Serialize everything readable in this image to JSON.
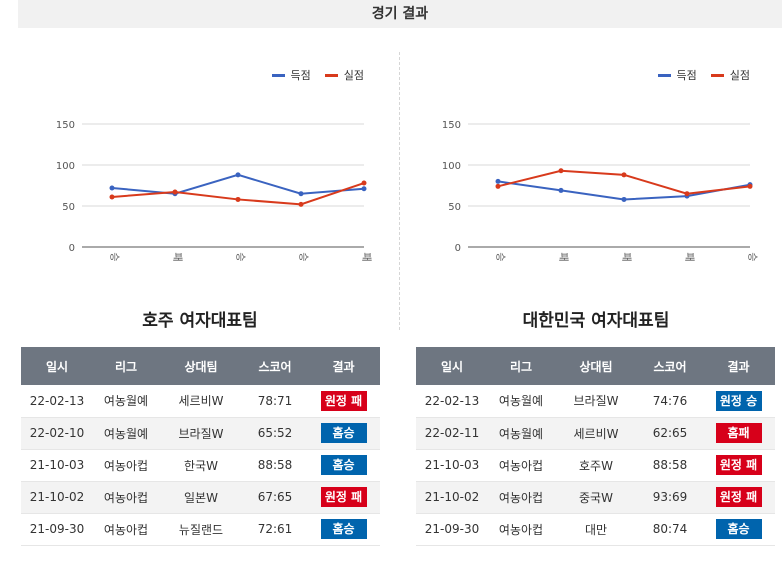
{
  "section_title": "경기 결과",
  "legend": {
    "scored": "득점",
    "conceded": "실점"
  },
  "colors": {
    "scored": "#3a63c0",
    "conceded": "#d83a1c",
    "win": "#0064ad",
    "loss": "#d7001a",
    "header": "#6e7681"
  },
  "table_headers": [
    "일시",
    "리그",
    "상대팀",
    "스코어",
    "결과"
  ],
  "teams": [
    {
      "name": "호주 여자대표팀",
      "rows": [
        {
          "date": "22-02-13",
          "league": "여농월예",
          "opponent": "세르비W",
          "score": "78:71",
          "result": "원정 패",
          "outcome": "loss"
        },
        {
          "date": "22-02-10",
          "league": "여농월예",
          "opponent": "브라질W",
          "score": "65:52",
          "result": "홈승",
          "outcome": "win"
        },
        {
          "date": "21-10-03",
          "league": "여농아컵",
          "opponent": "한국W",
          "score": "88:58",
          "result": "홈승",
          "outcome": "win"
        },
        {
          "date": "21-10-02",
          "league": "여농아컵",
          "opponent": "일본W",
          "score": "67:65",
          "result": "원정 패",
          "outcome": "loss"
        },
        {
          "date": "21-09-30",
          "league": "여농아컵",
          "opponent": "뉴질랜드",
          "score": "72:61",
          "result": "홈승",
          "outcome": "win"
        }
      ]
    },
    {
      "name": "대한민국 여자대표팀",
      "rows": [
        {
          "date": "22-02-13",
          "league": "여농월예",
          "opponent": "브라질W",
          "score": "74:76",
          "result": "원정 승",
          "outcome": "win"
        },
        {
          "date": "22-02-11",
          "league": "여농월예",
          "opponent": "세르비W",
          "score": "62:65",
          "result": "홈패",
          "outcome": "loss"
        },
        {
          "date": "21-10-03",
          "league": "여농아컵",
          "opponent": "호주W",
          "score": "88:58",
          "result": "원정 패",
          "outcome": "loss"
        },
        {
          "date": "21-10-02",
          "league": "여농아컵",
          "opponent": "중국W",
          "score": "93:69",
          "result": "원정 패",
          "outcome": "loss"
        },
        {
          "date": "21-09-30",
          "league": "여농아컵",
          "opponent": "대만",
          "score": "80:74",
          "result": "홈승",
          "outcome": "win"
        }
      ]
    }
  ],
  "chart_data": [
    {
      "type": "line",
      "categories": [
        "승",
        "패",
        "승",
        "승",
        "패"
      ],
      "series": [
        {
          "name": "득점",
          "values": [
            72,
            65,
            88,
            65,
            71
          ]
        },
        {
          "name": "실점",
          "values": [
            61,
            67,
            58,
            52,
            78
          ]
        }
      ],
      "yticks": [
        0,
        50,
        100,
        150
      ],
      "ylim": [
        0,
        150
      ],
      "grid": true,
      "legend_position": "top-right"
    },
    {
      "type": "line",
      "categories": [
        "승",
        "패",
        "패",
        "패",
        "승"
      ],
      "series": [
        {
          "name": "득점",
          "values": [
            80,
            69,
            58,
            62,
            76
          ]
        },
        {
          "name": "실점",
          "values": [
            74,
            93,
            88,
            65,
            74
          ]
        }
      ],
      "yticks": [
        0,
        50,
        100,
        150
      ],
      "ylim": [
        0,
        150
      ],
      "grid": true,
      "legend_position": "top-right"
    }
  ]
}
